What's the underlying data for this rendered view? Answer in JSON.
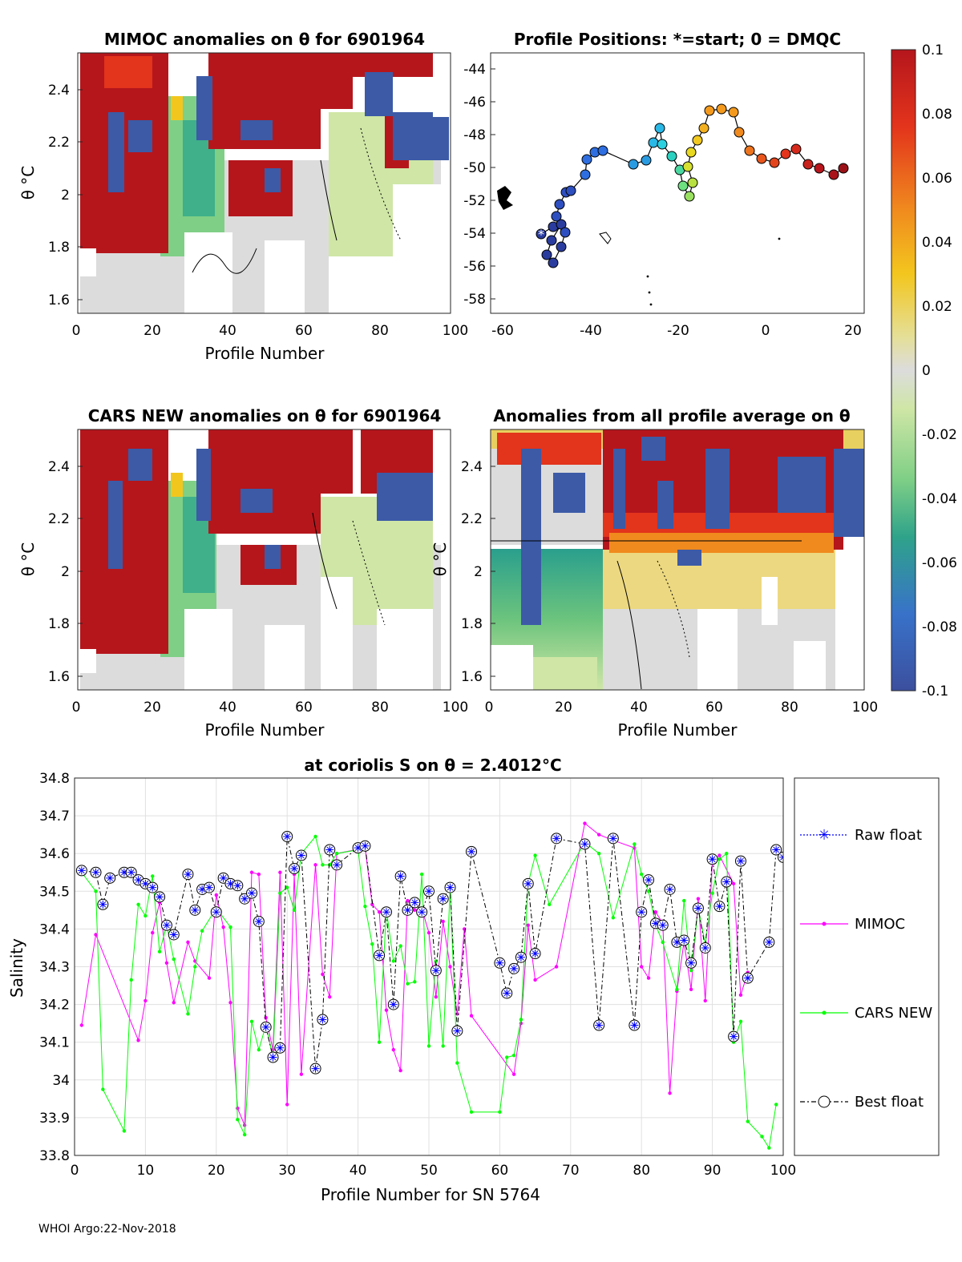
{
  "footer": "WHOI Argo:22-Nov-2018",
  "colors": {
    "raw": "#0000ff",
    "mimoc": "#ff00ff",
    "cars": "#00ff00",
    "best": "#000000"
  },
  "colorbar": {
    "ticks": [
      "0.1",
      "0.08",
      "0.06",
      "0.04",
      "0.02",
      "0",
      "-0.02",
      "-0.04",
      "-0.06",
      "-0.08",
      "-0.1"
    ],
    "range": [
      -0.1,
      0.1
    ]
  },
  "panels": {
    "mimoc": {
      "title": "MIMOC anomalies on θ  for 6901964",
      "xlabel": "Profile Number",
      "ylabel": "θ °C",
      "xticks": [
        "0",
        "20",
        "40",
        "60",
        "80",
        "100"
      ],
      "yticks": [
        "2.4",
        "2.2",
        "2",
        "1.8",
        "1.6"
      ]
    },
    "positions": {
      "title": "Profile Positions: *=start; 0 = DMQC",
      "xticks": [
        "-60",
        "-40",
        "-20",
        "0",
        "20"
      ],
      "yticks": [
        "-44",
        "-46",
        "-48",
        "-50",
        "-52",
        "-54",
        "-56",
        "-58"
      ]
    },
    "cars": {
      "title": "CARS NEW anomalies on θ for 6901964",
      "xlabel": "Profile Number",
      "ylabel": "θ °C",
      "xticks": [
        "0",
        "20",
        "40",
        "60",
        "80",
        "100"
      ],
      "yticks": [
        "2.4",
        "2.2",
        "2",
        "1.8",
        "1.6"
      ]
    },
    "avg": {
      "title": "Anomalies from all profile average on θ",
      "xlabel": "Profile Number",
      "ylabel": "θ °C",
      "xticks": [
        "0",
        "20",
        "40",
        "60",
        "80",
        "100"
      ],
      "yticks": [
        "2.4",
        "2.2",
        "2",
        "1.8",
        "1.6"
      ]
    }
  },
  "chart_data": {
    "type": "line",
    "title": "at coriolis S on θ = 2.4012°C",
    "xlabel": "Profile Number for SN 5764",
    "ylabel": "Salinity",
    "xlim": [
      0,
      100
    ],
    "ylim": [
      33.8,
      34.8
    ],
    "xticks": [
      0,
      10,
      20,
      30,
      40,
      50,
      60,
      70,
      80,
      90,
      100
    ],
    "yticks": [
      33.8,
      33.9,
      34,
      34.1,
      34.2,
      34.3,
      34.4,
      34.5,
      34.6,
      34.7,
      34.8
    ],
    "legend": [
      "Raw float",
      "MIMOC",
      "CARS NEW",
      "Best float"
    ],
    "series": [
      {
        "name": "Best float",
        "points": [
          [
            1,
            34.555
          ],
          [
            3,
            34.55
          ],
          [
            4,
            34.465
          ],
          [
            5,
            34.535
          ],
          [
            7,
            34.55
          ],
          [
            8,
            34.55
          ],
          [
            9,
            34.53
          ],
          [
            10,
            34.52
          ],
          [
            11,
            34.51
          ],
          [
            12,
            34.485
          ],
          [
            13,
            34.41
          ],
          [
            14,
            34.385
          ],
          [
            16,
            34.545
          ],
          [
            17,
            34.45
          ],
          [
            18,
            34.505
          ],
          [
            19,
            34.51
          ],
          [
            20,
            34.445
          ],
          [
            21,
            34.535
          ],
          [
            22,
            34.52
          ],
          [
            23,
            34.515
          ],
          [
            24,
            34.48
          ],
          [
            25,
            34.495
          ],
          [
            26,
            34.42
          ],
          [
            27,
            34.14
          ],
          [
            28,
            34.06
          ],
          [
            29,
            34.085
          ],
          [
            30,
            34.645
          ],
          [
            31,
            34.56
          ],
          [
            32,
            34.595
          ],
          [
            34,
            34.03
          ],
          [
            35,
            34.16
          ],
          [
            36,
            34.61
          ],
          [
            37,
            34.57
          ],
          [
            40,
            34.615
          ],
          [
            41,
            34.62
          ],
          [
            43,
            34.33
          ],
          [
            44,
            34.445
          ],
          [
            45,
            34.2
          ],
          [
            46,
            34.54
          ],
          [
            47,
            34.45
          ],
          [
            48,
            34.47
          ],
          [
            49,
            34.445
          ],
          [
            50,
            34.5
          ],
          [
            51,
            34.29
          ],
          [
            52,
            34.48
          ],
          [
            53,
            34.51
          ],
          [
            54,
            34.13
          ],
          [
            56,
            34.605
          ],
          [
            60,
            34.31
          ],
          [
            61,
            34.23
          ],
          [
            62,
            34.295
          ],
          [
            63,
            34.325
          ],
          [
            64,
            34.52
          ],
          [
            65,
            34.335
          ],
          [
            68,
            34.64
          ],
          [
            72,
            34.625
          ],
          [
            74,
            34.145
          ],
          [
            76,
            34.64
          ],
          [
            79,
            34.145
          ],
          [
            80,
            34.445
          ],
          [
            81,
            34.53
          ],
          [
            82,
            34.415
          ],
          [
            83,
            34.41
          ],
          [
            84,
            34.505
          ],
          [
            85,
            34.365
          ],
          [
            86,
            34.37
          ],
          [
            87,
            34.31
          ],
          [
            88,
            34.455
          ],
          [
            89,
            34.35
          ],
          [
            90,
            34.585
          ],
          [
            91,
            34.46
          ],
          [
            92,
            34.525
          ],
          [
            93,
            34.115
          ],
          [
            94,
            34.58
          ],
          [
            95,
            34.27
          ],
          [
            98,
            34.365
          ],
          [
            99,
            34.61
          ],
          [
            100,
            34.59
          ]
        ]
      },
      {
        "name": "MIMOC",
        "points": [
          [
            1,
            34.145
          ],
          [
            3,
            34.385
          ],
          [
            9,
            34.105
          ],
          [
            10,
            34.21
          ],
          [
            11,
            34.39
          ],
          [
            12,
            34.47
          ],
          [
            13,
            34.31
          ],
          [
            14,
            34.205
          ],
          [
            16,
            34.365
          ],
          [
            17,
            34.315
          ],
          [
            19,
            34.27
          ],
          [
            20,
            34.49
          ],
          [
            21,
            34.405
          ],
          [
            22,
            34.205
          ],
          [
            23,
            33.925
          ],
          [
            24,
            33.88
          ],
          [
            25,
            34.55
          ],
          [
            26,
            34.545
          ],
          [
            27,
            34.165
          ],
          [
            28,
            34.08
          ],
          [
            29,
            34.55
          ],
          [
            30,
            33.935
          ],
          [
            31,
            34.545
          ],
          [
            32,
            34.015
          ],
          [
            34,
            34.57
          ],
          [
            35,
            34.28
          ],
          [
            36,
            34.22
          ],
          [
            37,
            34.6
          ],
          [
            41,
            34.615
          ],
          [
            42,
            34.465
          ],
          [
            43,
            34.445
          ],
          [
            44,
            34.185
          ],
          [
            45,
            34.08
          ],
          [
            46,
            34.025
          ],
          [
            47,
            34.475
          ],
          [
            48,
            34.45
          ],
          [
            49,
            34.455
          ],
          [
            50,
            34.39
          ],
          [
            51,
            34.22
          ],
          [
            52,
            34.42
          ],
          [
            53,
            34.3
          ],
          [
            54,
            34.175
          ],
          [
            55,
            34.4
          ],
          [
            56,
            34.17
          ],
          [
            62,
            34.015
          ],
          [
            63,
            34.15
          ],
          [
            64,
            34.41
          ],
          [
            65,
            34.265
          ],
          [
            68,
            34.3
          ],
          [
            72,
            34.68
          ],
          [
            74,
            34.65
          ],
          [
            76,
            34.635
          ],
          [
            79,
            34.615
          ],
          [
            80,
            34.3
          ],
          [
            81,
            34.27
          ],
          [
            82,
            34.445
          ],
          [
            83,
            34.415
          ],
          [
            84,
            33.965
          ],
          [
            85,
            34.235
          ],
          [
            86,
            34.365
          ],
          [
            87,
            34.24
          ],
          [
            88,
            34.48
          ],
          [
            89,
            34.21
          ],
          [
            90,
            34.58
          ],
          [
            91,
            34.595
          ],
          [
            93,
            34.52
          ],
          [
            94,
            34.225
          ],
          [
            95,
            34.285
          ]
        ]
      },
      {
        "name": "CARS NEW",
        "points": [
          [
            1,
            34.55
          ],
          [
            3,
            34.5
          ],
          [
            4,
            33.975
          ],
          [
            7,
            33.865
          ],
          [
            8,
            34.265
          ],
          [
            9,
            34.465
          ],
          [
            10,
            34.435
          ],
          [
            11,
            34.54
          ],
          [
            12,
            34.34
          ],
          [
            13,
            34.41
          ],
          [
            14,
            34.32
          ],
          [
            16,
            34.175
          ],
          [
            17,
            34.3
          ],
          [
            18,
            34.395
          ],
          [
            20,
            34.455
          ],
          [
            22,
            34.405
          ],
          [
            23,
            33.895
          ],
          [
            24,
            33.855
          ],
          [
            25,
            34.155
          ],
          [
            26,
            34.08
          ],
          [
            27,
            34.145
          ],
          [
            28,
            34.06
          ],
          [
            29,
            34.495
          ],
          [
            30,
            34.51
          ],
          [
            31,
            34.45
          ],
          [
            32,
            34.6
          ],
          [
            34,
            34.645
          ],
          [
            35,
            34.57
          ],
          [
            36,
            34.57
          ],
          [
            37,
            34.6
          ],
          [
            40,
            34.61
          ],
          [
            41,
            34.46
          ],
          [
            42,
            34.36
          ],
          [
            43,
            34.1
          ],
          [
            44,
            34.45
          ],
          [
            45,
            34.315
          ],
          [
            46,
            34.355
          ],
          [
            47,
            34.255
          ],
          [
            48,
            34.26
          ],
          [
            49,
            34.545
          ],
          [
            50,
            34.09
          ],
          [
            51,
            34.315
          ],
          [
            52,
            34.09
          ],
          [
            53,
            34.505
          ],
          [
            54,
            34.045
          ],
          [
            56,
            33.915
          ],
          [
            60,
            33.915
          ],
          [
            61,
            34.06
          ],
          [
            62,
            34.065
          ],
          [
            63,
            34.16
          ],
          [
            64,
            34.52
          ],
          [
            65,
            34.595
          ],
          [
            67,
            34.465
          ],
          [
            72,
            34.63
          ],
          [
            74,
            34.6
          ],
          [
            76,
            34.43
          ],
          [
            79,
            34.625
          ],
          [
            80,
            34.545
          ],
          [
            81,
            34.5
          ],
          [
            82,
            34.41
          ],
          [
            83,
            34.365
          ],
          [
            85,
            34.24
          ],
          [
            86,
            34.475
          ],
          [
            87,
            34.29
          ],
          [
            88,
            34.455
          ],
          [
            89,
            34.36
          ],
          [
            90,
            34.495
          ],
          [
            91,
            34.585
          ],
          [
            92,
            34.6
          ],
          [
            93,
            34.1
          ],
          [
            94,
            34.155
          ],
          [
            95,
            33.89
          ],
          [
            97,
            33.85
          ],
          [
            98,
            33.82
          ],
          [
            99,
            33.935
          ]
        ]
      }
    ]
  }
}
